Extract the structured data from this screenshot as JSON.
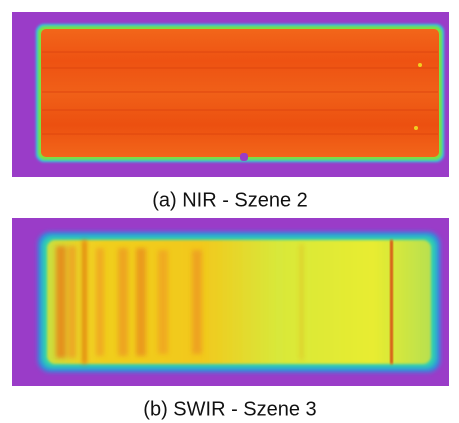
{
  "figures": [
    {
      "caption": "(a) NIR - Szene 2"
    },
    {
      "caption": "(b) SWIR - Szene 3"
    }
  ]
}
